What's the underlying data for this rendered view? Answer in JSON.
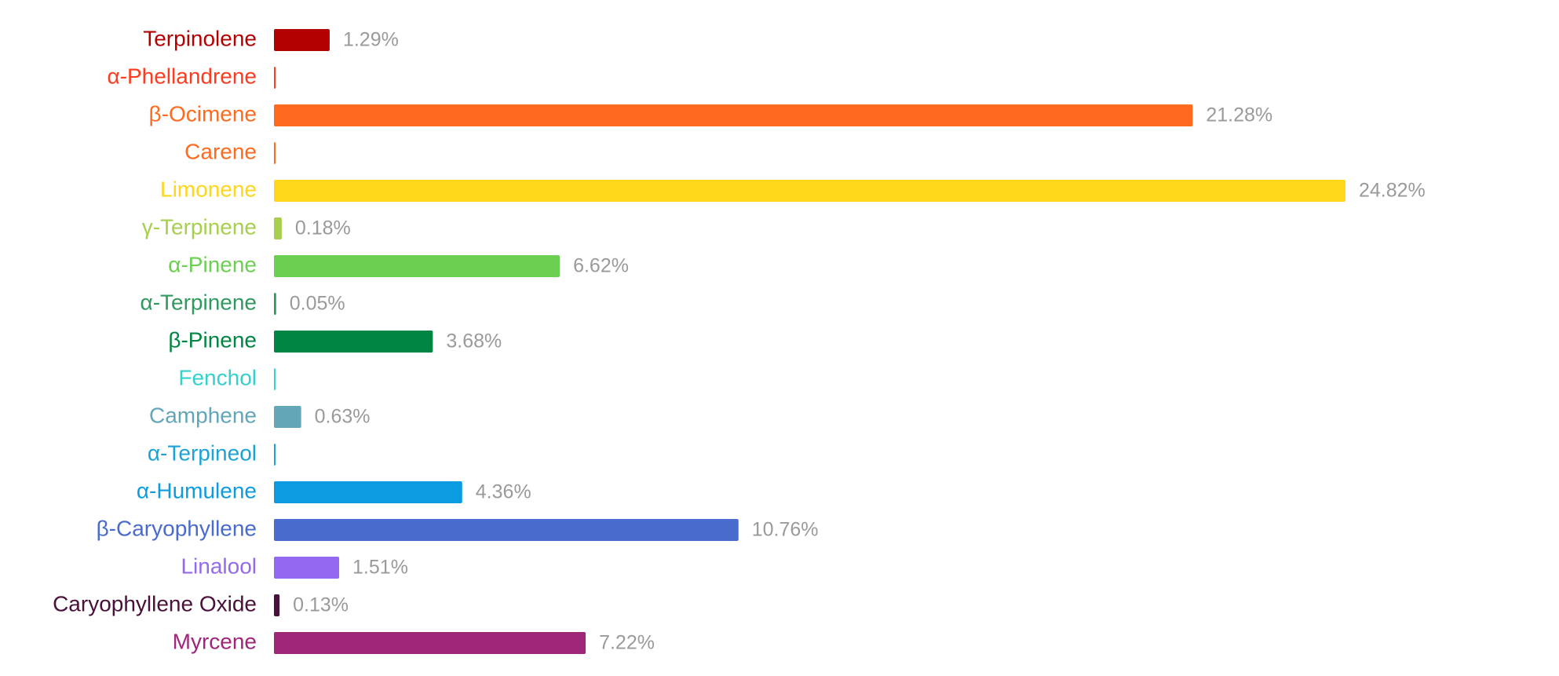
{
  "chart_data": {
    "type": "bar",
    "orientation": "horizontal",
    "categories": [
      "Terpinolene",
      "α-Phellandrene",
      "β-Ocimene",
      "Carene",
      "Limonene",
      "γ-Terpinene",
      "α-Pinene",
      "α-Terpinene",
      "β-Pinene",
      "Fenchol",
      "Camphene",
      "α-Terpineol",
      "α-Humulene",
      "β-Caryophyllene",
      "Linalool",
      "Caryophyllene Oxide",
      "Myrcene"
    ],
    "values": [
      1.29,
      0,
      21.28,
      0,
      24.82,
      0.18,
      6.62,
      0.05,
      3.68,
      0,
      0.63,
      0,
      4.36,
      10.76,
      1.51,
      0.13,
      7.22
    ],
    "value_labels": [
      "1.29%",
      null,
      "21.28%",
      null,
      "24.82%",
      "0.18%",
      "6.62%",
      "0.05%",
      "3.68%",
      null,
      "0.63%",
      null,
      "4.36%",
      "10.76%",
      "1.51%",
      "0.13%",
      "7.22%"
    ],
    "colors": [
      "#b30000",
      "#ff3b1f",
      "#ff6a1f",
      "#ff6a1f",
      "#ffd61a",
      "#a6cf4e",
      "#6ccf52",
      "#2e9a5e",
      "#008542",
      "#33d1cc",
      "#62a6b8",
      "#1aa3d6",
      "#0b9be0",
      "#4a6bce",
      "#9468f0",
      "#4a0f3a",
      "#a0267a"
    ]
  }
}
